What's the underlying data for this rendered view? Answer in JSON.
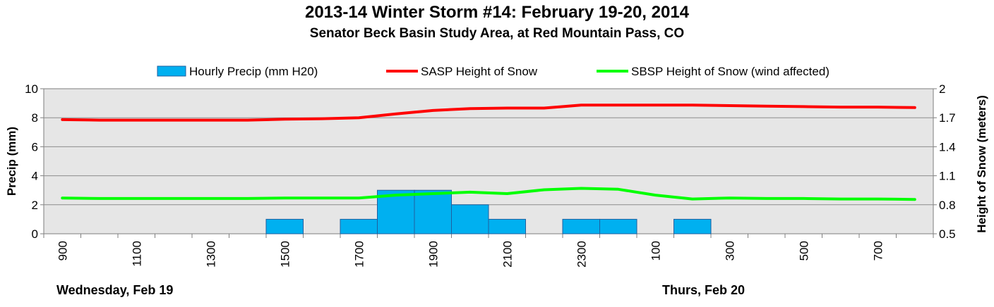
{
  "chart_data": {
    "type": "bar",
    "title": "2013-14 Winter Storm #14:  February 19-20, 2014",
    "subtitle": "Senator Beck Basin Study Area, at Red Mountain Pass, CO",
    "ylabel": "Precip (mm)",
    "y2label": "Height of Snow (meters)",
    "ylim": [
      0,
      10
    ],
    "y_ticks": [
      "0",
      "2",
      "4",
      "6",
      "8",
      "10"
    ],
    "y2lim": [
      0.5,
      2
    ],
    "y2_ticks": [
      "0.5",
      "0.8",
      "1.1",
      "1.4",
      "1.7",
      "2"
    ],
    "x_tick_labels": [
      "900",
      "1100",
      "1300",
      "1500",
      "1700",
      "1900",
      "2100",
      "2300",
      "100",
      "300",
      "500",
      "700"
    ],
    "x": [
      "900",
      "1000",
      "1100",
      "1200",
      "1300",
      "1400",
      "1500",
      "1600",
      "1700",
      "1800",
      "1900",
      "2000",
      "2100",
      "2200",
      "2300",
      "0",
      "100",
      "200",
      "300",
      "400",
      "500",
      "600",
      "700",
      "800"
    ],
    "grid": true,
    "legend_position": "top",
    "series": [
      {
        "name": "Hourly Precip (mm H20)",
        "type": "bar",
        "axis": "left",
        "color": "#00b0f0",
        "values": [
          0,
          0,
          0,
          0,
          0,
          0,
          1,
          0,
          1,
          3,
          3,
          2,
          1,
          0,
          1,
          1,
          0,
          1,
          0,
          0,
          0,
          0,
          0,
          0
        ]
      },
      {
        "name": "SASP Height of Snow",
        "type": "line",
        "axis": "right",
        "color": "#ff0000",
        "values": [
          1.68,
          1.675,
          1.675,
          1.675,
          1.675,
          1.675,
          1.685,
          1.69,
          1.7,
          1.74,
          1.775,
          1.795,
          1.8,
          1.8,
          1.83,
          1.83,
          1.83,
          1.83,
          1.825,
          1.82,
          1.815,
          1.81,
          1.81,
          1.805
        ]
      },
      {
        "name": "SBSP Height of Snow (wind affected)",
        "type": "line",
        "axis": "right",
        "color": "#00ff00",
        "values": [
          0.87,
          0.865,
          0.865,
          0.865,
          0.865,
          0.865,
          0.87,
          0.87,
          0.87,
          0.9,
          0.915,
          0.93,
          0.915,
          0.955,
          0.97,
          0.96,
          0.9,
          0.86,
          0.87,
          0.865,
          0.865,
          0.86,
          0.86,
          0.855
        ]
      }
    ],
    "day_labels": [
      "Wednesday, Feb 19",
      "Thurs, Feb 20"
    ]
  }
}
